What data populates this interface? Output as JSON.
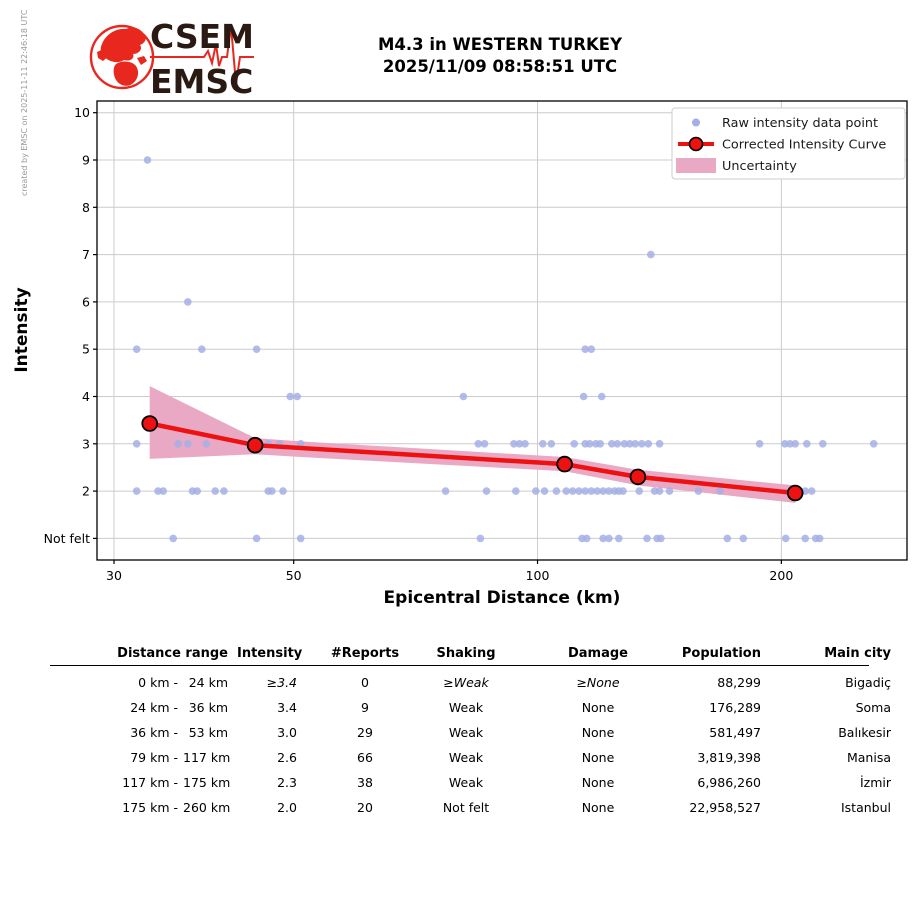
{
  "meta": {
    "created_by": "created by EMSC on 2025-11-11 22:46:18 UTC"
  },
  "logo": {
    "line1": "CSEM",
    "line2": "EMSC"
  },
  "title": {
    "line1": "M4.3 in WESTERN TURKEY",
    "line2": "2025/11/09 08:58:51 UTC"
  },
  "chart_data": {
    "type": "scatter",
    "title": "",
    "xlabel": "Epicentral Distance (km)",
    "ylabel": "Intensity",
    "x_scale": "log",
    "xlim": [
      28.5,
      286
    ],
    "ylim": [
      0.54,
      10.25
    ],
    "x_ticks": [
      30,
      50,
      100,
      200
    ],
    "y_ticks": [
      {
        "value": 1,
        "label": "Not felt"
      },
      {
        "value": 2,
        "label": "2"
      },
      {
        "value": 3,
        "label": "3"
      },
      {
        "value": 4,
        "label": "4"
      },
      {
        "value": 5,
        "label": "5"
      },
      {
        "value": 6,
        "label": "6"
      },
      {
        "value": 7,
        "label": "7"
      },
      {
        "value": 8,
        "label": "8"
      },
      {
        "value": 9,
        "label": "9"
      },
      {
        "value": 10,
        "label": "10"
      }
    ],
    "grid": true,
    "legend_position": "upper right",
    "legend": [
      {
        "key": "raw",
        "label": "Raw intensity data point"
      },
      {
        "key": "curve",
        "label": "Corrected Intensity Curve"
      },
      {
        "key": "band",
        "label": "Uncertainty"
      }
    ],
    "raw_points": [
      [
        33,
        9
      ],
      [
        138,
        7
      ],
      [
        37,
        6
      ],
      [
        32,
        5
      ],
      [
        38.5,
        5
      ],
      [
        45,
        5
      ],
      [
        114.5,
        5
      ],
      [
        116.5,
        5
      ],
      [
        49.5,
        4
      ],
      [
        50.5,
        4
      ],
      [
        81,
        4
      ],
      [
        114,
        4
      ],
      [
        120,
        4
      ],
      [
        32,
        3
      ],
      [
        36,
        3
      ],
      [
        37,
        3
      ],
      [
        39,
        3
      ],
      [
        46.5,
        3
      ],
      [
        48,
        3
      ],
      [
        51,
        3
      ],
      [
        84.5,
        3
      ],
      [
        86,
        3
      ],
      [
        93.5,
        3
      ],
      [
        95,
        3
      ],
      [
        96.5,
        3
      ],
      [
        101.5,
        3
      ],
      [
        104,
        3
      ],
      [
        111,
        3
      ],
      [
        114.5,
        3
      ],
      [
        116,
        3
      ],
      [
        118,
        3
      ],
      [
        119.5,
        3
      ],
      [
        123.5,
        3
      ],
      [
        125.5,
        3
      ],
      [
        128,
        3
      ],
      [
        130,
        3
      ],
      [
        132,
        3
      ],
      [
        134.5,
        3
      ],
      [
        137,
        3
      ],
      [
        141.5,
        3
      ],
      [
        188,
        3
      ],
      [
        202,
        3
      ],
      [
        205,
        3
      ],
      [
        208,
        3
      ],
      [
        215,
        3
      ],
      [
        225,
        3
      ],
      [
        260,
        3
      ],
      [
        32,
        2
      ],
      [
        34,
        2
      ],
      [
        34.5,
        2
      ],
      [
        37.5,
        2
      ],
      [
        38,
        2
      ],
      [
        40,
        2
      ],
      [
        41,
        2
      ],
      [
        46.5,
        2
      ],
      [
        47,
        2
      ],
      [
        48.5,
        2
      ],
      [
        77,
        2
      ],
      [
        86.5,
        2
      ],
      [
        94,
        2
      ],
      [
        99.5,
        2
      ],
      [
        102,
        2
      ],
      [
        105.5,
        2
      ],
      [
        108.5,
        2
      ],
      [
        110.5,
        2
      ],
      [
        112.5,
        2
      ],
      [
        114.5,
        2
      ],
      [
        116.5,
        2
      ],
      [
        118.5,
        2
      ],
      [
        120.5,
        2
      ],
      [
        122.5,
        2
      ],
      [
        124.5,
        2
      ],
      [
        126,
        2
      ],
      [
        127.5,
        2
      ],
      [
        133.5,
        2
      ],
      [
        139.5,
        2
      ],
      [
        141.5,
        2
      ],
      [
        145.5,
        2
      ],
      [
        158,
        2
      ],
      [
        168,
        2
      ],
      [
        214,
        2
      ],
      [
        218,
        2
      ],
      [
        35.5,
        1
      ],
      [
        45,
        1
      ],
      [
        51,
        1
      ],
      [
        85,
        1
      ],
      [
        113.5,
        1
      ],
      [
        115,
        1
      ],
      [
        120.5,
        1
      ],
      [
        122.5,
        1
      ],
      [
        126,
        1
      ],
      [
        136.5,
        1
      ],
      [
        140.5,
        1
      ],
      [
        142,
        1
      ],
      [
        171.5,
        1
      ],
      [
        179.5,
        1
      ],
      [
        202.5,
        1
      ],
      [
        214,
        1
      ],
      [
        220.5,
        1
      ],
      [
        223,
        1
      ]
    ],
    "corrected_curve": {
      "x": [
        33.2,
        44.8,
        108,
        133,
        208
      ],
      "y": [
        3.43,
        2.97,
        2.57,
        2.3,
        1.96
      ]
    },
    "uncertainty_band": {
      "x": [
        33.2,
        44.8,
        51,
        108,
        133,
        208
      ],
      "upper": [
        4.22,
        3.12,
        3.05,
        2.72,
        2.45,
        2.12
      ],
      "lower": [
        2.68,
        2.78,
        2.72,
        2.42,
        2.12,
        1.75
      ]
    },
    "colors": {
      "raw_point": "#a4afe5",
      "curve": "#ee1111",
      "curve_marker_edge": "#000000",
      "uncertainty_band": "#e9a9c4",
      "grid": "#cccccc",
      "axis": "#000000",
      "text": "#000000"
    }
  },
  "table": {
    "headers": {
      "range": "Distance range",
      "intensity": "Intensity",
      "reports": "#Reports",
      "shaking": "Shaking",
      "damage": "Damage",
      "population": "Population",
      "city": "Main city"
    },
    "rows": [
      {
        "range_from": "0 km -",
        "range_to": "24 km",
        "intensity": "≥3.4",
        "reports": "0",
        "shaking": "≥Weak",
        "damage": "≥None",
        "population": "88,299",
        "city": "Bigadiç",
        "italic": true
      },
      {
        "range_from": "24 km -",
        "range_to": "36 km",
        "intensity": "3.4",
        "reports": "9",
        "shaking": "Weak",
        "damage": "None",
        "population": "176,289",
        "city": "Soma",
        "italic": false
      },
      {
        "range_from": "36 km -",
        "range_to": "53 km",
        "intensity": "3.0",
        "reports": "29",
        "shaking": "Weak",
        "damage": "None",
        "population": "581,497",
        "city": "Balıkesir",
        "italic": false
      },
      {
        "range_from": "79 km -",
        "range_to": "117 km",
        "intensity": "2.6",
        "reports": "66",
        "shaking": "Weak",
        "damage": "None",
        "population": "3,819,398",
        "city": "Manisa",
        "italic": false
      },
      {
        "range_from": "117 km -",
        "range_to": "175 km",
        "intensity": "2.3",
        "reports": "38",
        "shaking": "Weak",
        "damage": "None",
        "population": "6,986,260",
        "city": "İzmir",
        "italic": false
      },
      {
        "range_from": "175 km -",
        "range_to": "260 km",
        "intensity": "2.0",
        "reports": "20",
        "shaking": "Not felt",
        "damage": "None",
        "population": "22,958,527",
        "city": "Istanbul",
        "italic": false
      }
    ]
  }
}
